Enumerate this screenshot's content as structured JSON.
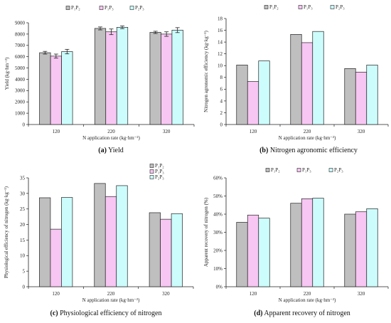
{
  "colors": {
    "s1": "#bfbfbf",
    "s2": "#f7c6f2",
    "s3": "#ccfcfc",
    "stroke": "#222222"
  },
  "chart_data": [
    {
      "type": "bar",
      "caption_letter": "(a)",
      "caption_text": "Yield",
      "ylabel": "Yield (kg·hm⁻²)",
      "xlabel": "N application rate (kg·hm⁻²)",
      "categories": [
        "120",
        "220",
        "320"
      ],
      "ylim": [
        0,
        9000
      ],
      "yticks": [
        "0",
        "1000",
        "2000",
        "3000",
        "4000",
        "5000",
        "6000",
        "7000",
        "8000",
        "9000"
      ],
      "legend_position": "top",
      "series": [
        {
          "name": "P₁P₂",
          "values": [
            6350,
            8500,
            8150
          ],
          "errors": [
            120,
            130,
            100
          ]
        },
        {
          "name": "P₁P₃",
          "values": [
            6050,
            8200,
            8000
          ],
          "errors": [
            180,
            250,
            200
          ]
        },
        {
          "name": "P₂P₃",
          "values": [
            6450,
            8600,
            8350
          ],
          "errors": [
            200,
            120,
            220
          ]
        }
      ]
    },
    {
      "type": "bar",
      "caption_letter": "(b)",
      "caption_text": "Nitrogen agronomic efficiency",
      "ylabel": "Nitrogen agronomic efficiency (kg·kg⁻¹)",
      "xlabel": "N application rate (kg·hm⁻²)",
      "categories": [
        "120",
        "220",
        "320"
      ],
      "ylim": [
        0,
        18
      ],
      "yticks": [
        "0",
        "2",
        "4",
        "6",
        "8",
        "10",
        "12",
        "14",
        "16",
        "18"
      ],
      "legend_position": "top",
      "series": [
        {
          "name": "P₁P₂",
          "values": [
            10.1,
            15.3,
            9.5
          ]
        },
        {
          "name": "P₁P₃",
          "values": [
            7.3,
            13.9,
            8.9
          ]
        },
        {
          "name": "P₂P₃",
          "values": [
            10.8,
            15.8,
            10.1
          ]
        }
      ]
    },
    {
      "type": "bar",
      "caption_letter": "(c)",
      "caption_text": "Physiological efficiency of nitrogen",
      "ylabel": "Physiological efficiency of nitrogen (kg·kg⁻¹)",
      "xlabel": "N application rate (kg·hm⁻²)",
      "categories": [
        "120",
        "220",
        "320"
      ],
      "ylim": [
        0,
        35
      ],
      "yticks": [
        "0",
        "5",
        "10",
        "15",
        "20",
        "25",
        "30",
        "35"
      ],
      "legend_position": "top-right",
      "series": [
        {
          "name": "P₁P₂",
          "values": [
            28.6,
            33.2,
            23.8
          ]
        },
        {
          "name": "P₁P₃",
          "values": [
            18.5,
            29.0,
            21.7
          ]
        },
        {
          "name": "P₂P₃",
          "values": [
            28.7,
            32.5,
            23.5
          ]
        }
      ]
    },
    {
      "type": "bar",
      "caption_letter": "(d)",
      "caption_text": "Apparent recovery of nitrogen",
      "ylabel": "Apparent recovery of nitrogen (%)",
      "xlabel": "N application rate  (kg·hm⁻²)",
      "categories": [
        "120",
        "220",
        "320"
      ],
      "ylim": [
        0,
        60
      ],
      "yticks": [
        "0%",
        "10%",
        "20%",
        "30%",
        "40%",
        "50%",
        "60%"
      ],
      "legend_position": "top",
      "series": [
        {
          "name": "P₁P₂",
          "values": [
            35.5,
            46.0,
            40.0
          ]
        },
        {
          "name": "P₁P₃",
          "values": [
            39.5,
            48.5,
            41.3
          ]
        },
        {
          "name": "P₂P₃",
          "values": [
            37.8,
            48.8,
            43.0
          ]
        }
      ]
    }
  ]
}
